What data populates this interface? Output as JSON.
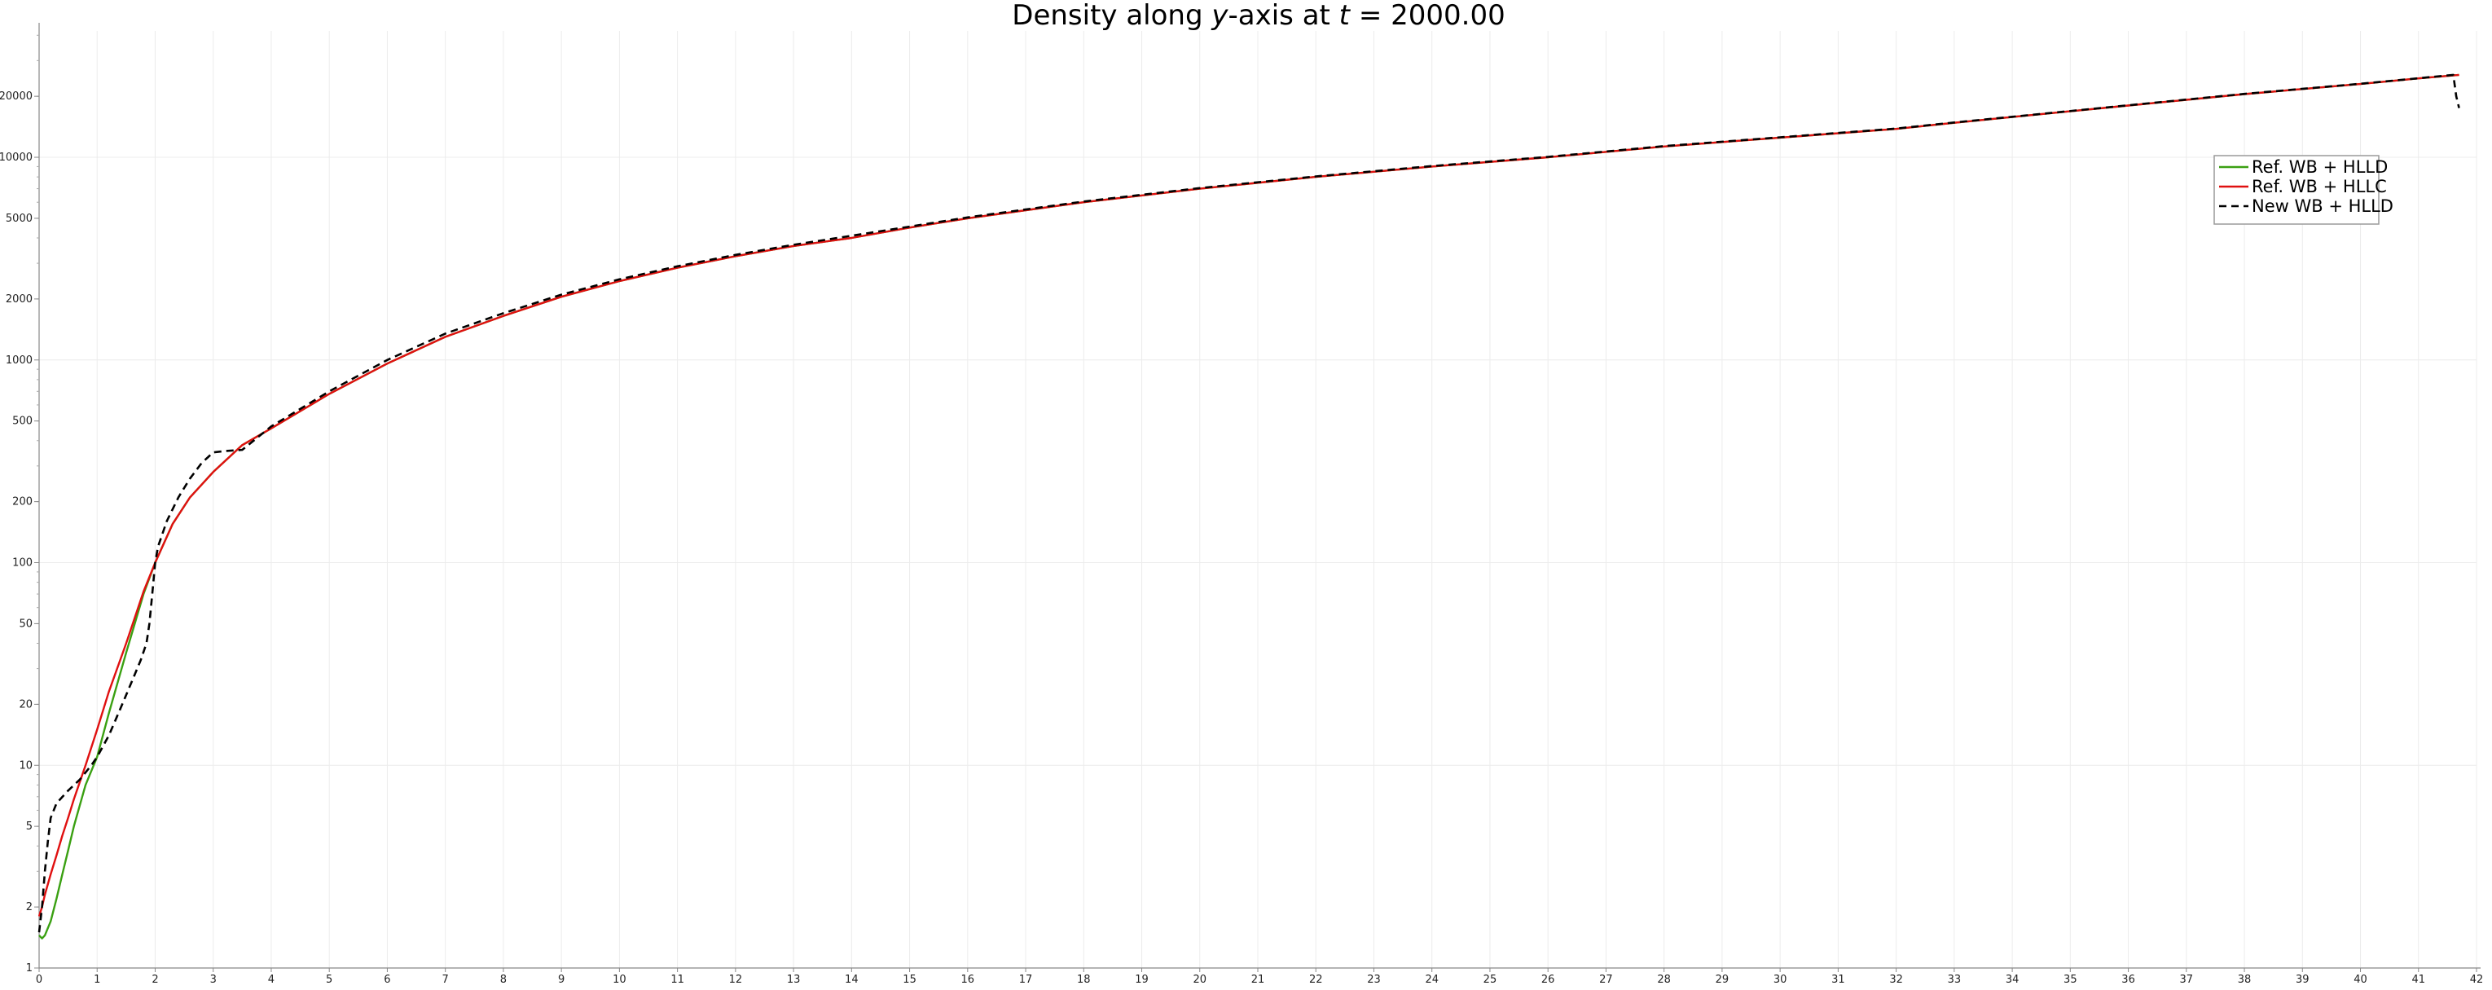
{
  "chart_data": {
    "type": "line",
    "title": "Density along y-axis at t = 2000.00",
    "title_parts": {
      "prefix": "Density along ",
      "axis_var": "y",
      "middle": "-axis at ",
      "time_var": "t",
      "suffix": " = 2000.00"
    },
    "xlabel": "",
    "ylabel": "",
    "y_scale": "log",
    "xlim": [
      0,
      42
    ],
    "ylim": [
      1,
      42000
    ],
    "x_ticks": [
      "0",
      "1",
      "2",
      "3",
      "4",
      "5",
      "6",
      "7",
      "8",
      "9",
      "10",
      "11",
      "12",
      "13",
      "14",
      "15",
      "16",
      "17",
      "18",
      "19",
      "20",
      "21",
      "22",
      "23",
      "24",
      "25",
      "26",
      "27",
      "28",
      "29",
      "30",
      "31",
      "32",
      "33",
      "34",
      "35",
      "36",
      "37",
      "38",
      "39",
      "40",
      "41",
      "42"
    ],
    "y_ticks": [
      "1",
      "2",
      "5",
      "10",
      "20",
      "50",
      "100",
      "200",
      "500",
      "1000",
      "2000",
      "5000",
      "10000",
      "20000"
    ],
    "grid": true,
    "legend_position": "upper-right",
    "series": [
      {
        "name": "Ref. WB + HLLD",
        "color": "#3aa012",
        "dash": "solid",
        "x": [
          0,
          0.05,
          0.1,
          0.2,
          0.3,
          0.4,
          0.5,
          0.6,
          0.8,
          1.0,
          1.2,
          1.5,
          1.8,
          2.0,
          2.3,
          2.6,
          3.0,
          3.5,
          4,
          5,
          6,
          7,
          8,
          9,
          10,
          11,
          12,
          13,
          14,
          15,
          16,
          18,
          20,
          22,
          24,
          26,
          28,
          30,
          32,
          33,
          34,
          36,
          38,
          40,
          41,
          41.7
        ],
        "y": [
          1.45,
          1.4,
          1.45,
          1.7,
          2.2,
          2.9,
          3.8,
          5,
          8,
          11,
          18,
          36,
          70,
          100,
          155,
          210,
          280,
          380,
          460,
          680,
          960,
          1300,
          1650,
          2050,
          2450,
          2850,
          3250,
          3650,
          4000,
          4500,
          5000,
          6000,
          7000,
          8000,
          9000,
          10000,
          11300,
          12500,
          13800,
          14800,
          15800,
          18000,
          20500,
          23000,
          24500,
          25500
        ]
      },
      {
        "name": "Ref. WB + HLLC",
        "color": "#e01010",
        "dash": "solid",
        "x": [
          0,
          0.05,
          0.1,
          0.2,
          0.3,
          0.4,
          0.5,
          0.6,
          0.8,
          1.0,
          1.2,
          1.5,
          1.8,
          2.0,
          2.3,
          2.6,
          3.0,
          3.5,
          4,
          5,
          6,
          7,
          8,
          9,
          10,
          11,
          12,
          13,
          14,
          15,
          16,
          18,
          20,
          22,
          24,
          26,
          28,
          30,
          32,
          33,
          34,
          36,
          38,
          40,
          41,
          41.7
        ],
        "y": [
          1.8,
          2.0,
          2.3,
          2.9,
          3.6,
          4.5,
          5.5,
          6.8,
          10,
          15,
          23,
          40,
          72,
          100,
          155,
          210,
          280,
          380,
          460,
          680,
          960,
          1300,
          1650,
          2050,
          2450,
          2850,
          3250,
          3650,
          4000,
          4500,
          5000,
          6000,
          7000,
          8000,
          9000,
          10000,
          11300,
          12500,
          13800,
          14800,
          15800,
          18000,
          20500,
          23000,
          24500,
          25500
        ]
      },
      {
        "name": "New WB + HLLD",
        "color": "#000000",
        "dash": "dashed",
        "x": [
          0,
          0.05,
          0.1,
          0.15,
          0.2,
          0.3,
          0.5,
          0.7,
          0.9,
          1.0,
          1.2,
          1.4,
          1.6,
          1.75,
          1.85,
          1.9,
          1.95,
          2.0,
          2.05,
          2.2,
          2.4,
          2.6,
          2.8,
          3.0,
          3.2,
          3.5,
          4,
          5,
          6,
          7,
          8,
          9,
          10,
          11,
          12,
          13,
          14,
          15,
          16,
          18,
          20,
          22,
          24,
          26,
          28,
          30,
          32,
          33,
          34,
          36,
          38,
          40,
          41,
          41.6,
          41.65,
          41.7
        ],
        "y": [
          1.5,
          2.0,
          3.0,
          4.2,
          5.5,
          6.5,
          7.5,
          8.5,
          10,
          11,
          14,
          19,
          26,
          33,
          40,
          50,
          70,
          100,
          120,
          160,
          210,
          260,
          310,
          350,
          355,
          360,
          470,
          700,
          1000,
          1350,
          1700,
          2100,
          2500,
          2900,
          3300,
          3700,
          4100,
          4550,
          5050,
          6050,
          7050,
          8050,
          9050,
          10050,
          11350,
          12550,
          13850,
          14850,
          15850,
          18050,
          20550,
          23050,
          24550,
          25500,
          20000,
          17500
        ]
      }
    ]
  }
}
